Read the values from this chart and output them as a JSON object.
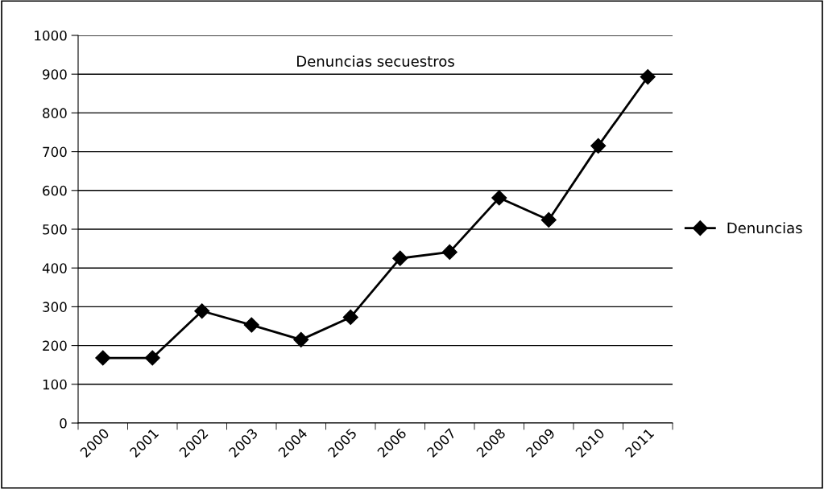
{
  "chart_data": {
    "type": "line",
    "title": "Denuncias secuestros",
    "categories": [
      "2000",
      "2001",
      "2002",
      "2003",
      "2004",
      "2005",
      "2006",
      "2007",
      "2008",
      "2009",
      "2010",
      "2011"
    ],
    "series": [
      {
        "name": "Denuncias",
        "color": "#000000",
        "values": [
          168,
          168,
          289,
          253,
          215,
          273,
          425,
          441,
          581,
          524,
          715,
          893
        ]
      }
    ],
    "ylim": [
      0,
      1000
    ],
    "yticks": [
      0,
      100,
      200,
      300,
      400,
      500,
      600,
      700,
      800,
      900,
      1000
    ],
    "grid": "y",
    "legend": "right",
    "marker": "diamond",
    "line_style": "solid"
  }
}
